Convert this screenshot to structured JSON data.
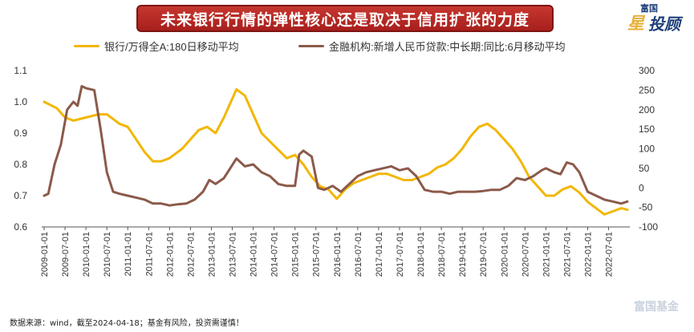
{
  "title": "未来银行行情的弹性核心还是取决于信用扩张的力度",
  "logo": {
    "top_text": "富国",
    "main_text_1": "星",
    "main_text_2": "投顾"
  },
  "watermark": "富国基金",
  "source": "数据来源：wind，截至2024-04-18；基金有风险，投资需谨慎！",
  "colors": {
    "bank": "#f2b705",
    "credit": "#8b5a4a",
    "banner": "#b3241f"
  },
  "chart_data": {
    "type": "line",
    "title": "未来银行行情的弹性核心还是取决于信用扩张的力度",
    "left_axis": {
      "ylim": [
        0.6,
        1.1
      ],
      "ticks": [
        "0.6",
        "0.7",
        "0.8",
        "0.9",
        "1.0",
        "1.1"
      ]
    },
    "right_axis": {
      "ylim": [
        -100,
        300
      ],
      "ticks": [
        "-100",
        "-50",
        "0",
        "50",
        "100",
        "150",
        "200",
        "250",
        "300"
      ]
    },
    "x_ticks": [
      "2009-01-01",
      "2009-07-01",
      "2010-01-01",
      "2010-07-01",
      "2011-01-01",
      "2011-07-01",
      "2012-01-01",
      "2012-07-01",
      "2013-01-01",
      "2013-07-01",
      "2014-01-01",
      "2014-07-01",
      "2015-01-01",
      "2015-07-01",
      "2016-01-01",
      "2016-07-01",
      "2017-01-01",
      "2017-07-01",
      "2018-01-01",
      "2018-07-01",
      "2019-01-01",
      "2019-07-01",
      "2020-01-01",
      "2020-07-01",
      "2021-01-01",
      "2021-07-01",
      "2022-01-01",
      "2022-07-01"
    ],
    "grid": false,
    "legend": "top",
    "series": [
      {
        "name": "银行/万得全A:180日移动平均",
        "axis": "left",
        "color": "#f2b705",
        "x": [
          2009.0,
          2009.3,
          2009.5,
          2009.7,
          2010.0,
          2010.3,
          2010.5,
          2010.8,
          2011.0,
          2011.2,
          2011.4,
          2011.6,
          2011.8,
          2012.0,
          2012.3,
          2012.5,
          2012.7,
          2012.9,
          2013.1,
          2013.3,
          2013.5,
          2013.6,
          2013.8,
          2014.0,
          2014.2,
          2014.5,
          2014.8,
          2015.0,
          2015.2,
          2015.4,
          2015.6,
          2015.8,
          2016.0,
          2016.2,
          2016.4,
          2016.6,
          2016.8,
          2017.0,
          2017.2,
          2017.4,
          2017.6,
          2017.8,
          2018.0,
          2018.2,
          2018.4,
          2018.6,
          2018.8,
          2019.0,
          2019.2,
          2019.4,
          2019.6,
          2019.8,
          2020.0,
          2020.2,
          2020.4,
          2020.6,
          2020.8,
          2021.0,
          2021.2,
          2021.4,
          2021.6,
          2021.8,
          2022.0,
          2022.2,
          2022.4,
          2022.6,
          2022.8,
          2022.95
        ],
        "values": [
          1.0,
          0.98,
          0.95,
          0.94,
          0.95,
          0.96,
          0.96,
          0.93,
          0.92,
          0.88,
          0.84,
          0.81,
          0.81,
          0.82,
          0.85,
          0.88,
          0.91,
          0.92,
          0.9,
          0.95,
          1.01,
          1.04,
          1.02,
          0.96,
          0.9,
          0.86,
          0.82,
          0.83,
          0.8,
          0.76,
          0.73,
          0.72,
          0.69,
          0.72,
          0.74,
          0.75,
          0.76,
          0.77,
          0.77,
          0.76,
          0.75,
          0.75,
          0.76,
          0.77,
          0.79,
          0.8,
          0.82,
          0.85,
          0.89,
          0.92,
          0.93,
          0.91,
          0.88,
          0.85,
          0.81,
          0.76,
          0.73,
          0.7,
          0.7,
          0.72,
          0.73,
          0.71,
          0.68,
          0.66,
          0.64,
          0.65,
          0.66,
          0.655
        ]
      },
      {
        "name": "金融机构:新增人民币贷款:中长期:同比:6月移动平均",
        "axis": "right",
        "color": "#8b5a4a",
        "x": [
          2009.0,
          2009.1,
          2009.25,
          2009.4,
          2009.55,
          2009.7,
          2009.8,
          2009.9,
          2010.0,
          2010.2,
          2010.35,
          2010.5,
          2010.65,
          2010.8,
          2011.0,
          2011.2,
          2011.4,
          2011.6,
          2011.8,
          2012.0,
          2012.2,
          2012.4,
          2012.6,
          2012.8,
          2012.95,
          2013.1,
          2013.3,
          2013.45,
          2013.6,
          2013.8,
          2014.0,
          2014.2,
          2014.4,
          2014.6,
          2014.8,
          2015.0,
          2015.1,
          2015.2,
          2015.4,
          2015.55,
          2015.7,
          2015.9,
          2016.1,
          2016.3,
          2016.5,
          2016.7,
          2016.9,
          2017.1,
          2017.3,
          2017.5,
          2017.7,
          2017.9,
          2018.1,
          2018.3,
          2018.5,
          2018.7,
          2018.9,
          2019.1,
          2019.3,
          2019.5,
          2019.7,
          2019.9,
          2020.1,
          2020.3,
          2020.5,
          2020.7,
          2020.9,
          2021.0,
          2021.2,
          2021.35,
          2021.5,
          2021.65,
          2021.8,
          2022.0,
          2022.2,
          2022.4,
          2022.6,
          2022.8,
          2022.95
        ],
        "values": [
          -20,
          -15,
          60,
          110,
          200,
          220,
          210,
          260,
          255,
          250,
          150,
          40,
          -10,
          -15,
          -20,
          -25,
          -30,
          -40,
          -40,
          -45,
          -42,
          -40,
          -30,
          -10,
          20,
          10,
          25,
          50,
          75,
          55,
          60,
          40,
          30,
          10,
          5,
          5,
          85,
          95,
          80,
          0,
          -5,
          5,
          -10,
          10,
          30,
          40,
          45,
          50,
          55,
          45,
          50,
          30,
          -5,
          -10,
          -10,
          -15,
          -10,
          -10,
          -10,
          -8,
          -5,
          -5,
          5,
          25,
          20,
          30,
          45,
          50,
          40,
          35,
          65,
          60,
          40,
          -10,
          -20,
          -30,
          -35,
          -40,
          -35
        ]
      }
    ]
  }
}
